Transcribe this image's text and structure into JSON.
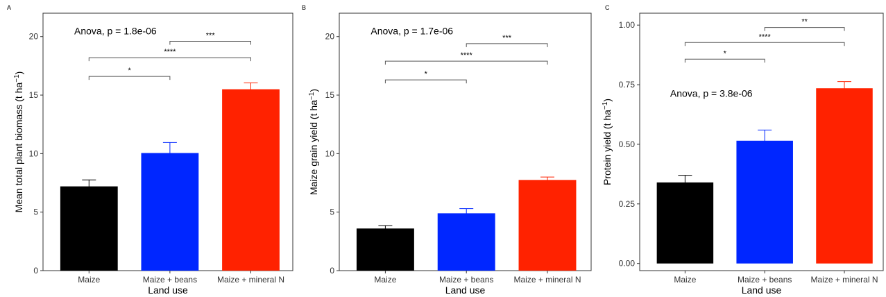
{
  "chart_data": [
    {
      "panel_label": "A",
      "type": "bar",
      "categories": [
        "Maize",
        "Maize + beans",
        "Maize + mineral N"
      ],
      "values": [
        7.2,
        10.05,
        15.5
      ],
      "errors": [
        0.55,
        0.9,
        0.55
      ],
      "colors": [
        "#000000",
        "#0026ff",
        "#ff2200"
      ],
      "xlabel": "Land use",
      "ylabel": "Mean total plant biomass (t ha",
      "ylabel_sup": "−1",
      "ylabel_close": ")",
      "ylim": [
        0,
        22
      ],
      "yticks": [
        0,
        5,
        10,
        15,
        20
      ],
      "ytick_labels": [
        "0",
        "5",
        "10",
        "15",
        "20"
      ],
      "annotation": "Anova, p = 1.8e-06",
      "annotation_pos": [
        12.8,
        20.5
      ],
      "brackets": [
        {
          "from": 0,
          "to": 1,
          "y": 16.6,
          "label": "*"
        },
        {
          "from": 0,
          "to": 2,
          "y": 18.2,
          "label": "****"
        },
        {
          "from": 1,
          "to": 2,
          "y": 19.6,
          "label": "***"
        }
      ]
    },
    {
      "panel_label": "B",
      "type": "bar",
      "categories": [
        "Maize",
        "Maize + beans",
        "Maize + mineral N"
      ],
      "values": [
        3.6,
        4.9,
        7.75
      ],
      "errors": [
        0.25,
        0.4,
        0.25
      ],
      "colors": [
        "#000000",
        "#0026ff",
        "#ff2200"
      ],
      "xlabel": "Land use",
      "ylabel": "Maize grain yield (t ha",
      "ylabel_sup": "−1",
      "ylabel_close": ")",
      "ylim": [
        0,
        22
      ],
      "yticks": [
        0,
        5,
        10,
        15,
        20
      ],
      "ytick_labels": [
        "0",
        "5",
        "10",
        "15",
        "20"
      ],
      "annotation": "Anova, p = 1.7e-06",
      "annotation_pos": [
        12.8,
        20.5
      ],
      "brackets": [
        {
          "from": 0,
          "to": 1,
          "y": 16.3,
          "label": "*"
        },
        {
          "from": 0,
          "to": 2,
          "y": 17.9,
          "label": "****"
        },
        {
          "from": 1,
          "to": 2,
          "y": 19.4,
          "label": "***"
        }
      ]
    },
    {
      "panel_label": "C",
      "type": "bar",
      "categories": [
        "Maize",
        "Maize + beans",
        "Maize + mineral N"
      ],
      "values": [
        0.34,
        0.515,
        0.735
      ],
      "errors": [
        0.03,
        0.045,
        0.028
      ],
      "colors": [
        "#000000",
        "#0026ff",
        "#ff2200"
      ],
      "xlabel": "Land use",
      "ylabel": "Protein yield (t ha",
      "ylabel_sup": "−1",
      "ylabel_close": ")",
      "ylim": [
        -0.03,
        1.05
      ],
      "yticks": [
        0,
        0.25,
        0.5,
        0.75,
        1
      ],
      "ytick_labels": [
        "0.00",
        "0.25",
        "0.50",
        "0.75",
        "1.00"
      ],
      "annotation": "Anova, p = 3.8e-06",
      "annotation_pos": [
        0.715,
        0.714
      ],
      "brackets": [
        {
          "from": 0,
          "to": 1,
          "y": 0.857,
          "label": "*"
        },
        {
          "from": 0,
          "to": 2,
          "y": 0.927,
          "label": "****"
        },
        {
          "from": 1,
          "to": 2,
          "y": 0.99,
          "label": "**"
        }
      ]
    }
  ]
}
